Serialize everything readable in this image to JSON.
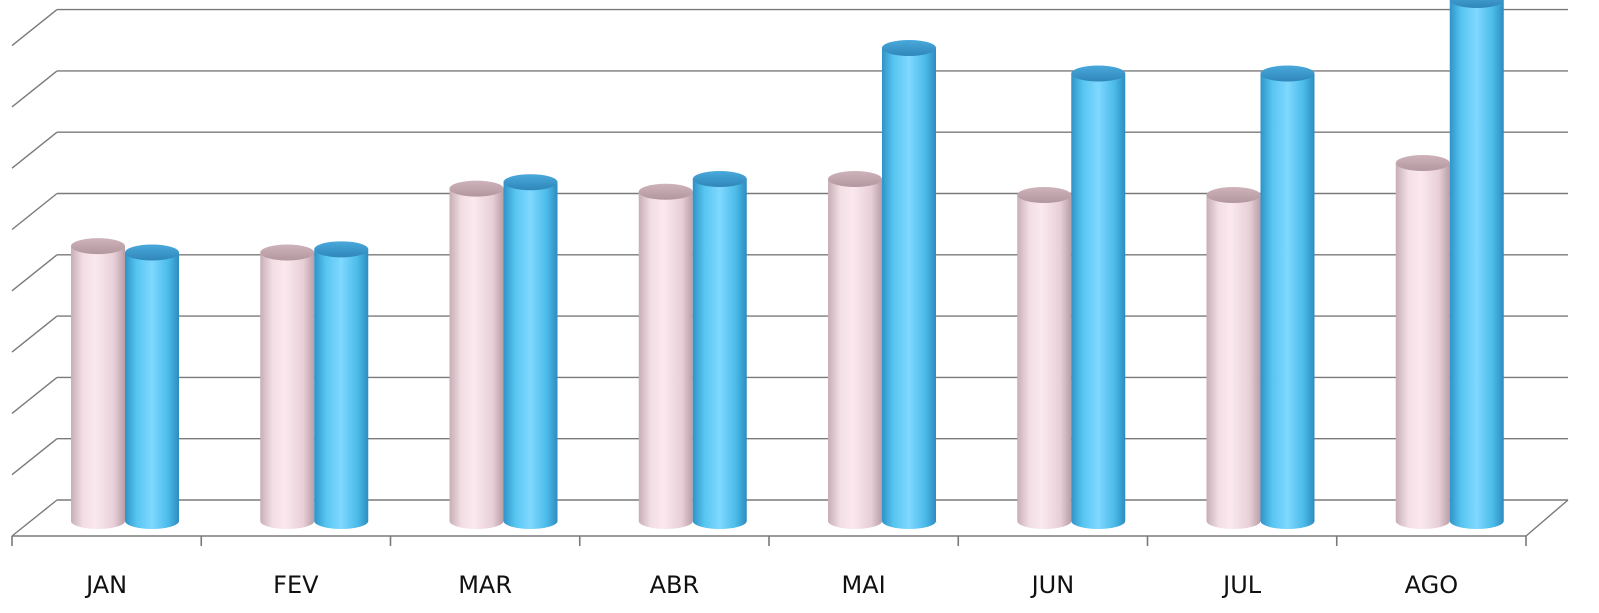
{
  "chart_data": {
    "type": "bar",
    "categories": [
      "JAN",
      "FEV",
      "MAR",
      "ABR",
      "MAI",
      "JUN",
      "JUL",
      "AGO"
    ],
    "series": [
      {
        "values": [
          4.3,
          4.2,
          5.2,
          5.15,
          5.35,
          5.1,
          5.1,
          5.6
        ],
        "color": "#f3d9e3"
      },
      {
        "values": [
          4.2,
          4.25,
          5.3,
          5.35,
          7.4,
          7.0,
          7.0,
          8.15
        ],
        "color": "#56c8f2"
      }
    ],
    "ylim": [
      0,
      8
    ],
    "grid": true,
    "legend": "none"
  }
}
